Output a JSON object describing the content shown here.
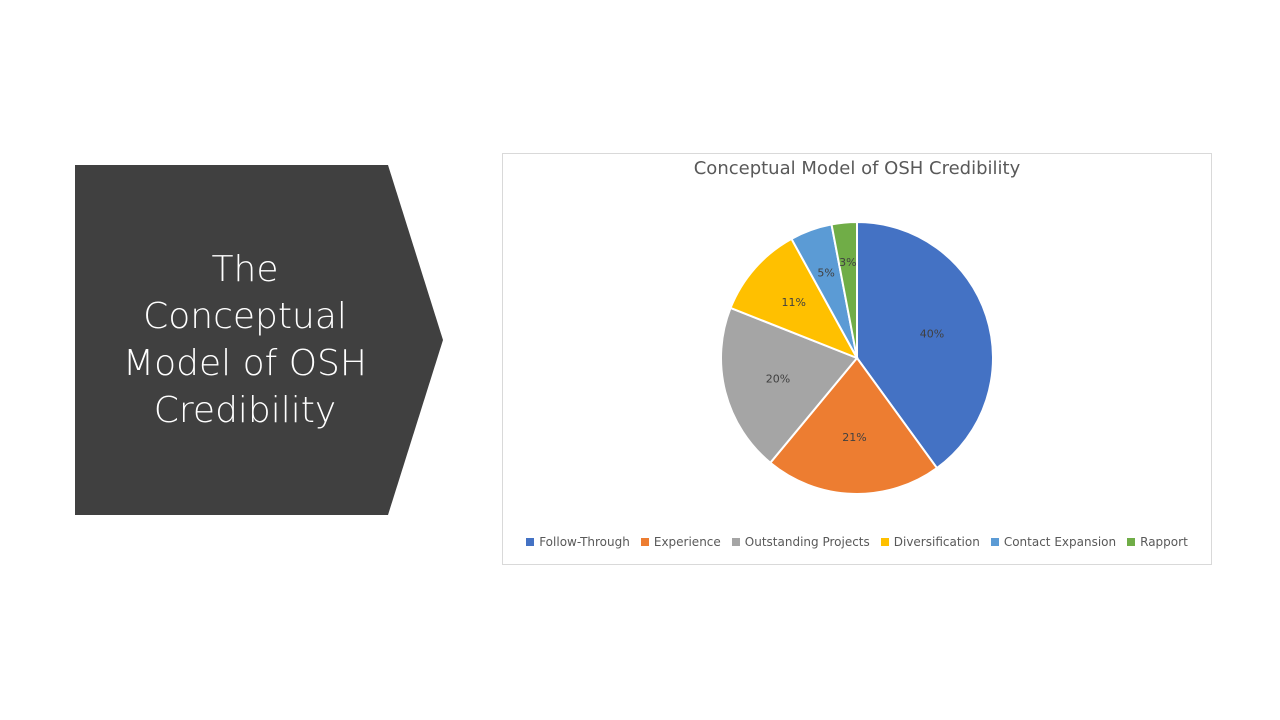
{
  "slide": {
    "heading": "The\nConceptual\nModel of OSH\nCredibility"
  },
  "chart_data": {
    "type": "pie",
    "title": "Conceptual Model of OSH Credibility",
    "categories": [
      "Follow-Through",
      "Experience",
      "Outstanding Projects",
      "Diversification",
      "Contact Expansion",
      "Rapport"
    ],
    "values": [
      40,
      21,
      20,
      11,
      5,
      3
    ],
    "labels": [
      "40%",
      "21%",
      "20%",
      "11%",
      "5%",
      "3%"
    ],
    "colors": [
      "#4472C4",
      "#ED7D31",
      "#A5A5A5",
      "#FFC000",
      "#5B9BD5",
      "#70AD47"
    ],
    "legend": "bottom"
  }
}
